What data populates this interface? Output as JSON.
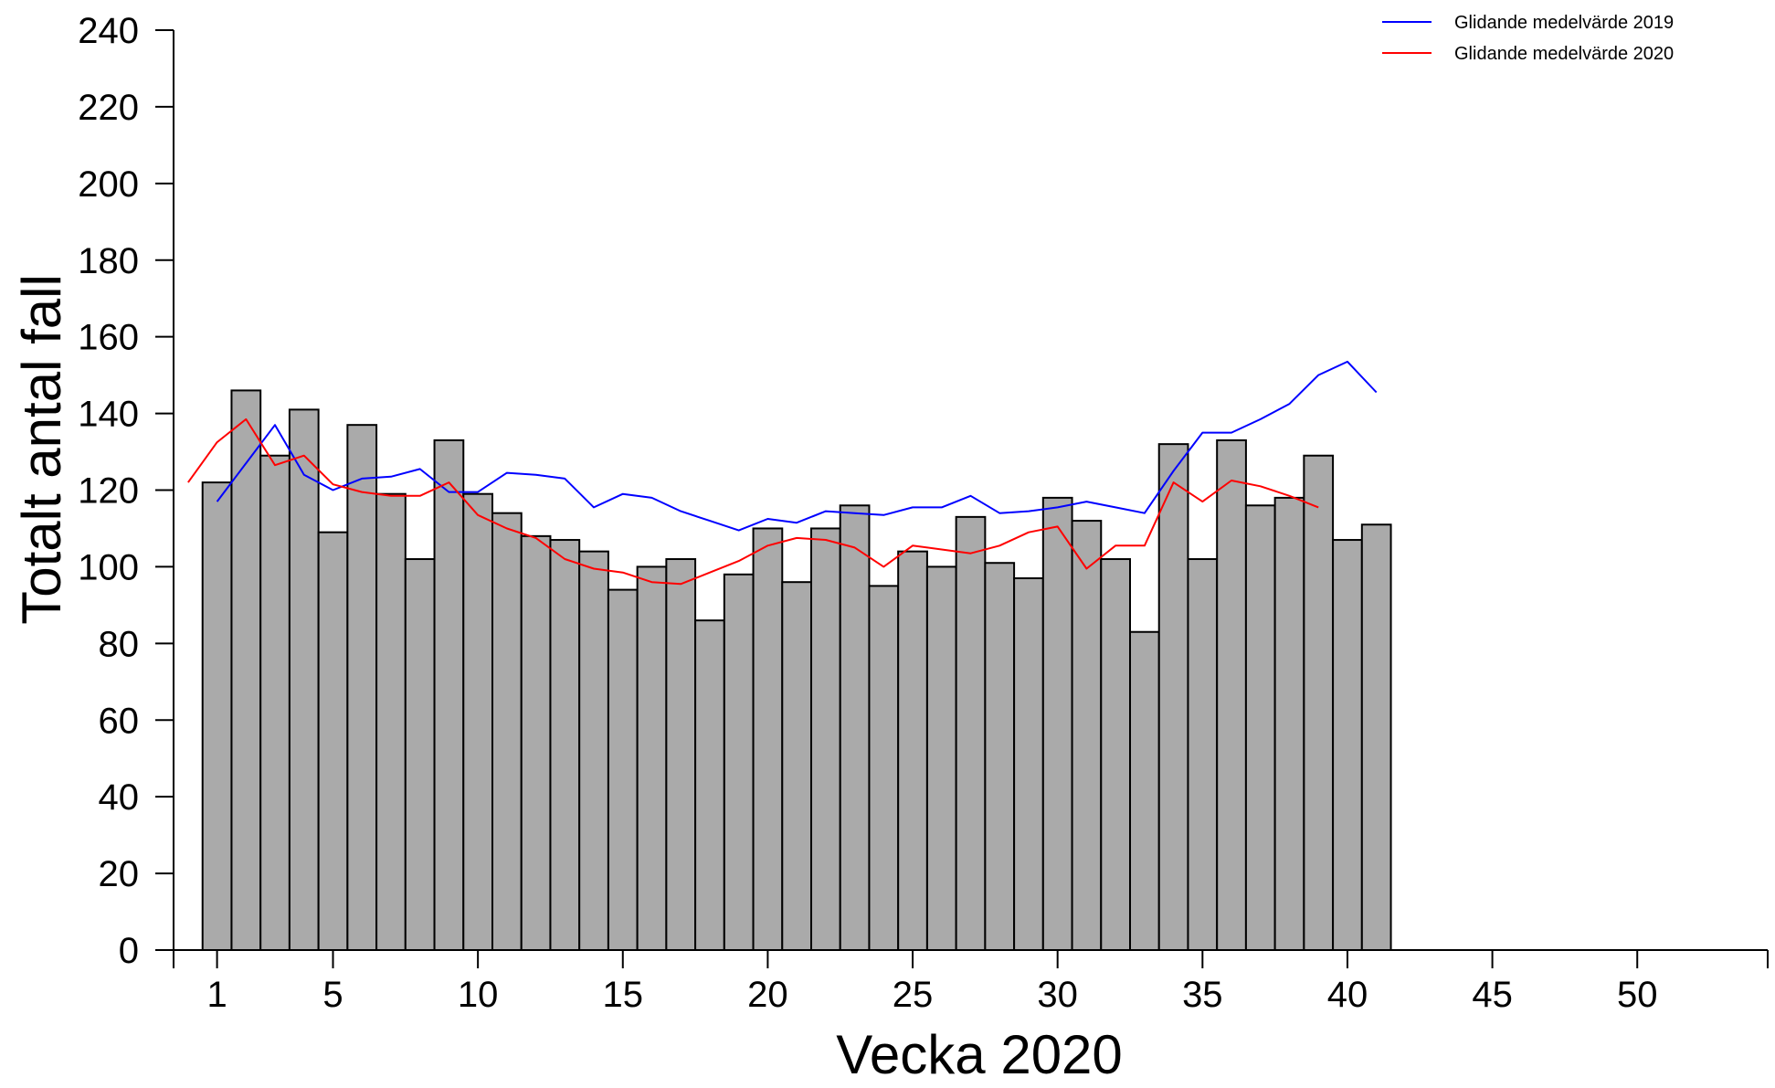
{
  "chart_data": {
    "type": "bar",
    "title": "",
    "xlabel": "Vecka 2020",
    "ylabel": "Totalt antal fall",
    "xlim": [
      -0.5,
      54.5
    ],
    "ylim": [
      0,
      240
    ],
    "x_ticks": [
      1,
      5,
      10,
      15,
      20,
      25,
      30,
      35,
      40,
      45,
      50
    ],
    "y_ticks": [
      0,
      20,
      40,
      60,
      80,
      100,
      120,
      140,
      160,
      180,
      200,
      220,
      240
    ],
    "grid": false,
    "legend_position": "top-right",
    "bar_color": "#aaaaaa",
    "bar_edge_color": "#000000",
    "weeks": [
      1,
      2,
      3,
      4,
      5,
      6,
      7,
      8,
      9,
      10,
      11,
      12,
      13,
      14,
      15,
      16,
      17,
      18,
      19,
      20,
      21,
      22,
      23,
      24,
      25,
      26,
      27,
      28,
      29,
      30,
      31,
      32,
      33,
      34,
      35,
      36,
      37,
      38,
      39,
      40,
      41
    ],
    "values": [
      122,
      146,
      129,
      141,
      109,
      137,
      119,
      102,
      133,
      119,
      114,
      108,
      107,
      104,
      94,
      100,
      102,
      86,
      98,
      110,
      96,
      110,
      116,
      95,
      104,
      100,
      113,
      101,
      97,
      118,
      112,
      102,
      83,
      132,
      102,
      133,
      116,
      118,
      129,
      107,
      111
    ],
    "series": [
      {
        "name": "Glidande medelvärde 2019",
        "color": "#0000ff",
        "x": [
          1,
          2,
          3,
          4,
          5,
          6,
          7,
          8,
          9,
          10,
          11,
          12,
          13,
          14,
          15,
          16,
          17,
          18,
          19,
          20,
          21,
          22,
          23,
          24,
          25,
          26,
          27,
          28,
          29,
          30,
          31,
          32,
          33,
          34,
          35,
          36,
          37,
          38,
          39,
          40,
          41
        ],
        "values": [
          117,
          127,
          137,
          124,
          120,
          123,
          123.5,
          125.5,
          119.5,
          119.5,
          124.5,
          124,
          123,
          115.5,
          119,
          118,
          114.5,
          112,
          109.5,
          112.5,
          111.5,
          114.5,
          114,
          113.5,
          115.5,
          115.5,
          118.5,
          114,
          114.5,
          115.5,
          117,
          115.5,
          114,
          125,
          135,
          135,
          138.5,
          142.5,
          150,
          153.5,
          145.5
        ]
      },
      {
        "name": "Glidande medelvärde 2020",
        "color": "#ff0000",
        "x": [
          0,
          1,
          2,
          3,
          4,
          5,
          6,
          7,
          8,
          9,
          10,
          11,
          12,
          13,
          14,
          15,
          16,
          17,
          18,
          19,
          20,
          21,
          22,
          23,
          24,
          25,
          26,
          27,
          28,
          29,
          30,
          31,
          32,
          33,
          34,
          35,
          36,
          37,
          38,
          39
        ],
        "values": [
          122,
          132.5,
          138.5,
          126.5,
          129,
          121.5,
          119.5,
          118.5,
          118.5,
          122,
          113.5,
          110,
          107.5,
          102,
          99.5,
          98.5,
          96,
          95.5,
          98.5,
          101.5,
          105.5,
          107.5,
          107,
          105,
          100,
          105.5,
          104.5,
          103.5,
          105.5,
          109,
          110.5,
          99.5,
          105.5,
          105.5,
          122,
          117,
          122.5,
          121,
          118.5,
          115.5
        ]
      }
    ]
  }
}
